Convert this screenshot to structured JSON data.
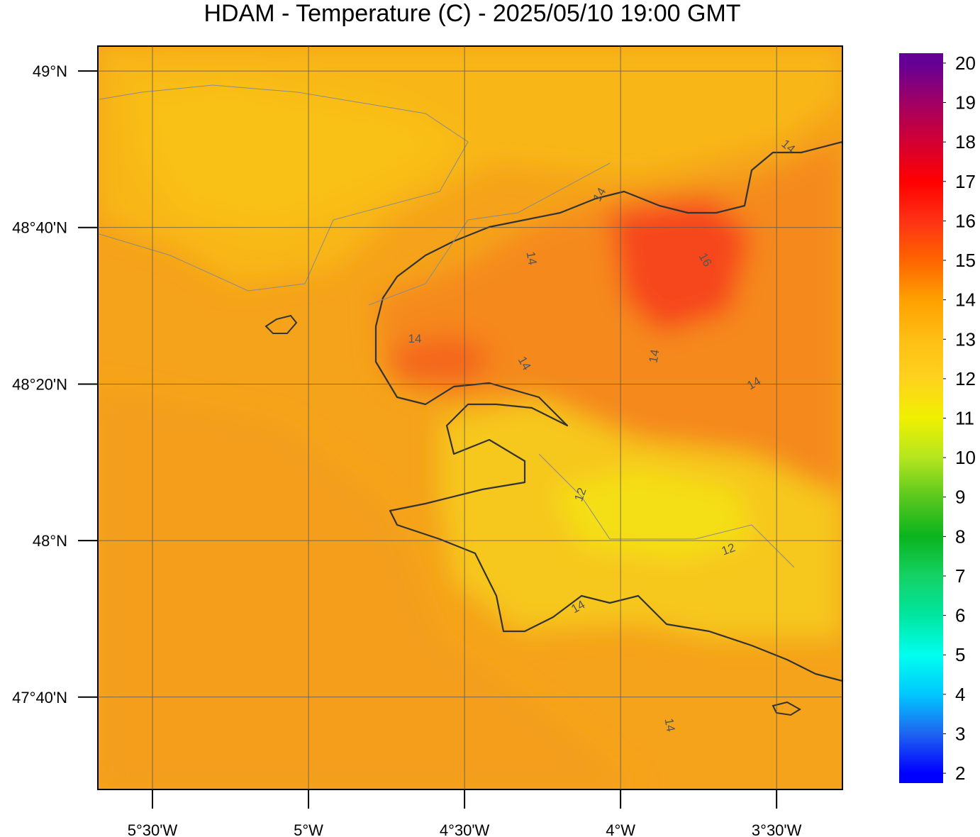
{
  "chart_data": {
    "type": "map",
    "title": "HDAM - Temperature (C)  -  2025/05/10  19:00 GMT",
    "xlim": [
      -5.675,
      -3.289
    ],
    "ylim": [
      47.47,
      49.053
    ],
    "xticks": [
      {
        "value": -5.5,
        "label": "5°30'W"
      },
      {
        "value": -5,
        "label": "5°W"
      },
      {
        "value": -4.5,
        "label": "4°30'W"
      },
      {
        "value": -4,
        "label": "4°W"
      },
      {
        "value": -3.5,
        "label": "3°30'W"
      }
    ],
    "yticks": [
      {
        "value": 49,
        "label": "49°N"
      },
      {
        "value": 48.6667,
        "label": "48°40'N"
      },
      {
        "value": 48.3333,
        "label": "48°20'N"
      },
      {
        "value": 48,
        "label": "48°N"
      },
      {
        "value": 47.6667,
        "label": "47°40'N"
      }
    ],
    "grid": true,
    "colorbar": {
      "lim": [
        1.75,
        20.25
      ],
      "ticks": [
        2,
        3,
        4,
        5,
        6,
        7,
        8,
        9,
        10,
        11,
        12,
        13,
        14,
        15,
        16,
        17,
        18,
        19,
        20
      ],
      "colors": [
        "#0000ff",
        "#1e64f0",
        "#00c8ff",
        "#00ffee",
        "#00e6a0",
        "#14d264",
        "#0ab41e",
        "#5ac81e",
        "#b4e61e",
        "#f0f000",
        "#ffd21e",
        "#ffbe14",
        "#ffa000",
        "#ff6400",
        "#ff3214",
        "#ff0000",
        "#d20032",
        "#a00064",
        "#640096"
      ]
    },
    "contour_labels": [
      14,
      14,
      14,
      14,
      16,
      14,
      14,
      12,
      12,
      14,
      14,
      14
    ]
  }
}
